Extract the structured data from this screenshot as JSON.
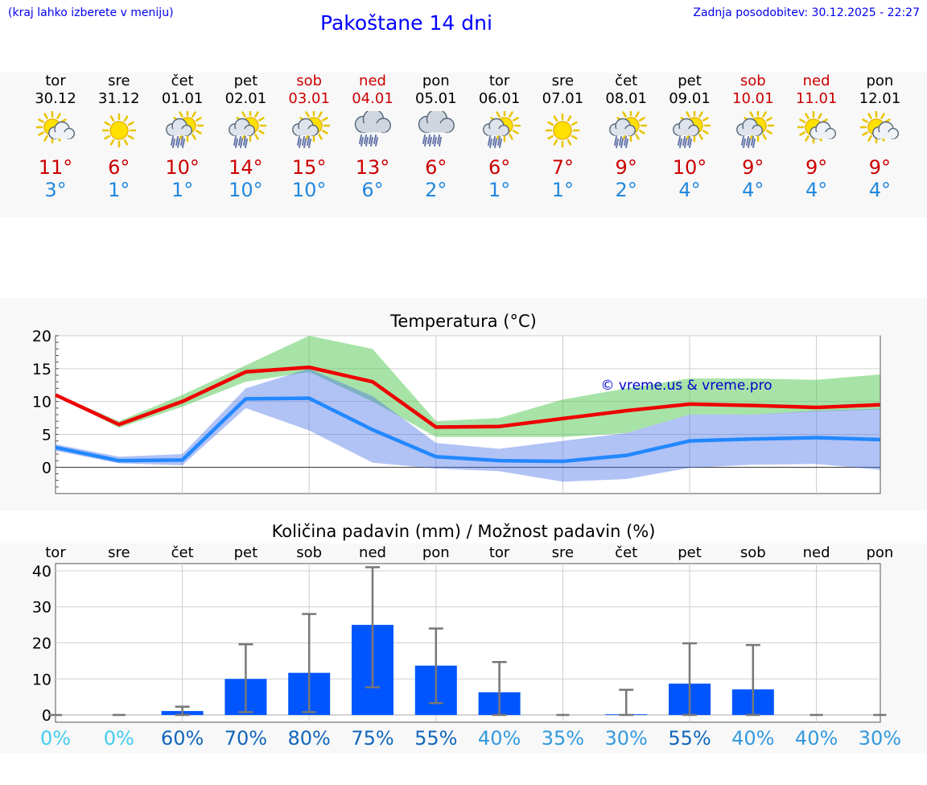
{
  "header": {
    "menu_hint": "(kraj lahko izberete v meniju)",
    "title": "Pakoštane 14 dni",
    "updated": "Zadnja posodobitev: 30.12.2025 - 22:27"
  },
  "days": [
    {
      "name": "tor",
      "date": "30.12",
      "icon": "sun-cloud-icon",
      "max": "11°",
      "min": "3°",
      "weekend": false
    },
    {
      "name": "sre",
      "date": "31.12",
      "icon": "sun-icon",
      "max": "6°",
      "min": "1°",
      "weekend": false
    },
    {
      "name": "čet",
      "date": "01.01",
      "icon": "sun-cloud-rain-icon",
      "max": "10°",
      "min": "1°",
      "weekend": false
    },
    {
      "name": "pet",
      "date": "02.01",
      "icon": "sun-cloud-rain-icon",
      "max": "14°",
      "min": "10°",
      "weekend": false
    },
    {
      "name": "sob",
      "date": "03.01",
      "icon": "sun-cloud-rain-icon",
      "max": "15°",
      "min": "10°",
      "weekend": true
    },
    {
      "name": "ned",
      "date": "04.01",
      "icon": "cloud-rain-icon",
      "max": "13°",
      "min": "6°",
      "weekend": true
    },
    {
      "name": "pon",
      "date": "05.01",
      "icon": "cloud-rain-icon",
      "max": "6°",
      "min": "2°",
      "weekend": false
    },
    {
      "name": "tor",
      "date": "06.01",
      "icon": "sun-cloud-rain-icon",
      "max": "6°",
      "min": "1°",
      "weekend": false
    },
    {
      "name": "sre",
      "date": "07.01",
      "icon": "sun-icon",
      "max": "7°",
      "min": "1°",
      "weekend": false
    },
    {
      "name": "čet",
      "date": "08.01",
      "icon": "sun-cloud-rain-icon",
      "max": "9°",
      "min": "2°",
      "weekend": false
    },
    {
      "name": "pet",
      "date": "09.01",
      "icon": "sun-cloud-rain-icon",
      "max": "10°",
      "min": "4°",
      "weekend": false
    },
    {
      "name": "sob",
      "date": "10.01",
      "icon": "sun-cloud-rain-icon",
      "max": "9°",
      "min": "4°",
      "weekend": true
    },
    {
      "name": "ned",
      "date": "11.01",
      "icon": "sun-cloud-icon",
      "max": "9°",
      "min": "4°",
      "weekend": true
    },
    {
      "name": "pon",
      "date": "12.01",
      "icon": "sun-cloud-icon",
      "max": "9°",
      "min": "4°",
      "weekend": false
    }
  ],
  "chart_data": [
    {
      "type": "line",
      "title": "Temperatura (°C)",
      "watermark": "© vreme.us & vreme.pro",
      "ylim": [
        -4,
        20
      ],
      "yticks": [
        0,
        5,
        10,
        15,
        20
      ],
      "series": [
        {
          "name": "max",
          "color": "#ee0000",
          "values": [
            11,
            6.5,
            10,
            14.5,
            15.2,
            13,
            6.1,
            6.2,
            7.4,
            8.6,
            9.6,
            9.4,
            9.1,
            9.5
          ],
          "band_low": [
            11,
            6,
            9.2,
            13,
            14.5,
            10,
            4.6,
            4.6,
            4.6,
            5.2,
            8,
            8,
            8.5,
            8.8
          ],
          "band_high": [
            11.2,
            7,
            11,
            15.5,
            20,
            18,
            7,
            7.5,
            10.3,
            12,
            13.5,
            13.5,
            13.3,
            14.1
          ]
        },
        {
          "name": "min",
          "color": "#2288ff",
          "values": [
            3,
            1,
            1.1,
            10.4,
            10.5,
            5.7,
            1.6,
            1,
            0.9,
            1.8,
            4,
            4.3,
            4.5,
            4.2
          ],
          "band_low": [
            2.5,
            0.6,
            0.3,
            9,
            5.6,
            0.7,
            -0.2,
            -0.6,
            -2.2,
            -1.8,
            -0.1,
            0.4,
            0.5,
            -0.4
          ],
          "band_high": [
            3.5,
            1.6,
            2,
            12,
            15,
            10.8,
            3.7,
            2.8,
            4,
            5.2,
            8,
            8,
            8.6,
            8.9
          ]
        }
      ]
    },
    {
      "type": "bar",
      "title": "Količina padavin (mm) / Možnost padavin (%)",
      "categories": [
        "tor",
        "sre",
        "čet",
        "pet",
        "sob",
        "ned",
        "pon",
        "tor",
        "sre",
        "čet",
        "pet",
        "sob",
        "ned",
        "pon"
      ],
      "values": [
        0,
        0,
        1.1,
        10,
        11.7,
        25,
        13.7,
        6.3,
        0,
        0.2,
        8.7,
        7.1,
        0,
        0
      ],
      "err_low": [
        0,
        0,
        0,
        0.8,
        0.8,
        7.7,
        3.3,
        0,
        0,
        0,
        0,
        0,
        0,
        0
      ],
      "err_high": [
        0,
        0,
        2.3,
        19.6,
        28,
        41,
        24,
        14.7,
        0,
        7,
        19.9,
        19.4,
        0,
        0
      ],
      "probability": [
        "0%",
        "0%",
        "60%",
        "70%",
        "80%",
        "75%",
        "55%",
        "40%",
        "35%",
        "30%",
        "55%",
        "40%",
        "40%",
        "30%"
      ],
      "prob_colors": [
        "#44ccee",
        "#44ccee",
        "#1166bb",
        "#1166bb",
        "#1166bb",
        "#1166bb",
        "#1166bb",
        "#3399dd",
        "#3399dd",
        "#3399dd",
        "#1166bb",
        "#3399dd",
        "#3399dd",
        "#3399dd"
      ],
      "ylim": [
        -2,
        42
      ],
      "yticks": [
        0,
        10,
        20,
        30,
        40
      ],
      "bar_color": "#0055ff"
    }
  ]
}
